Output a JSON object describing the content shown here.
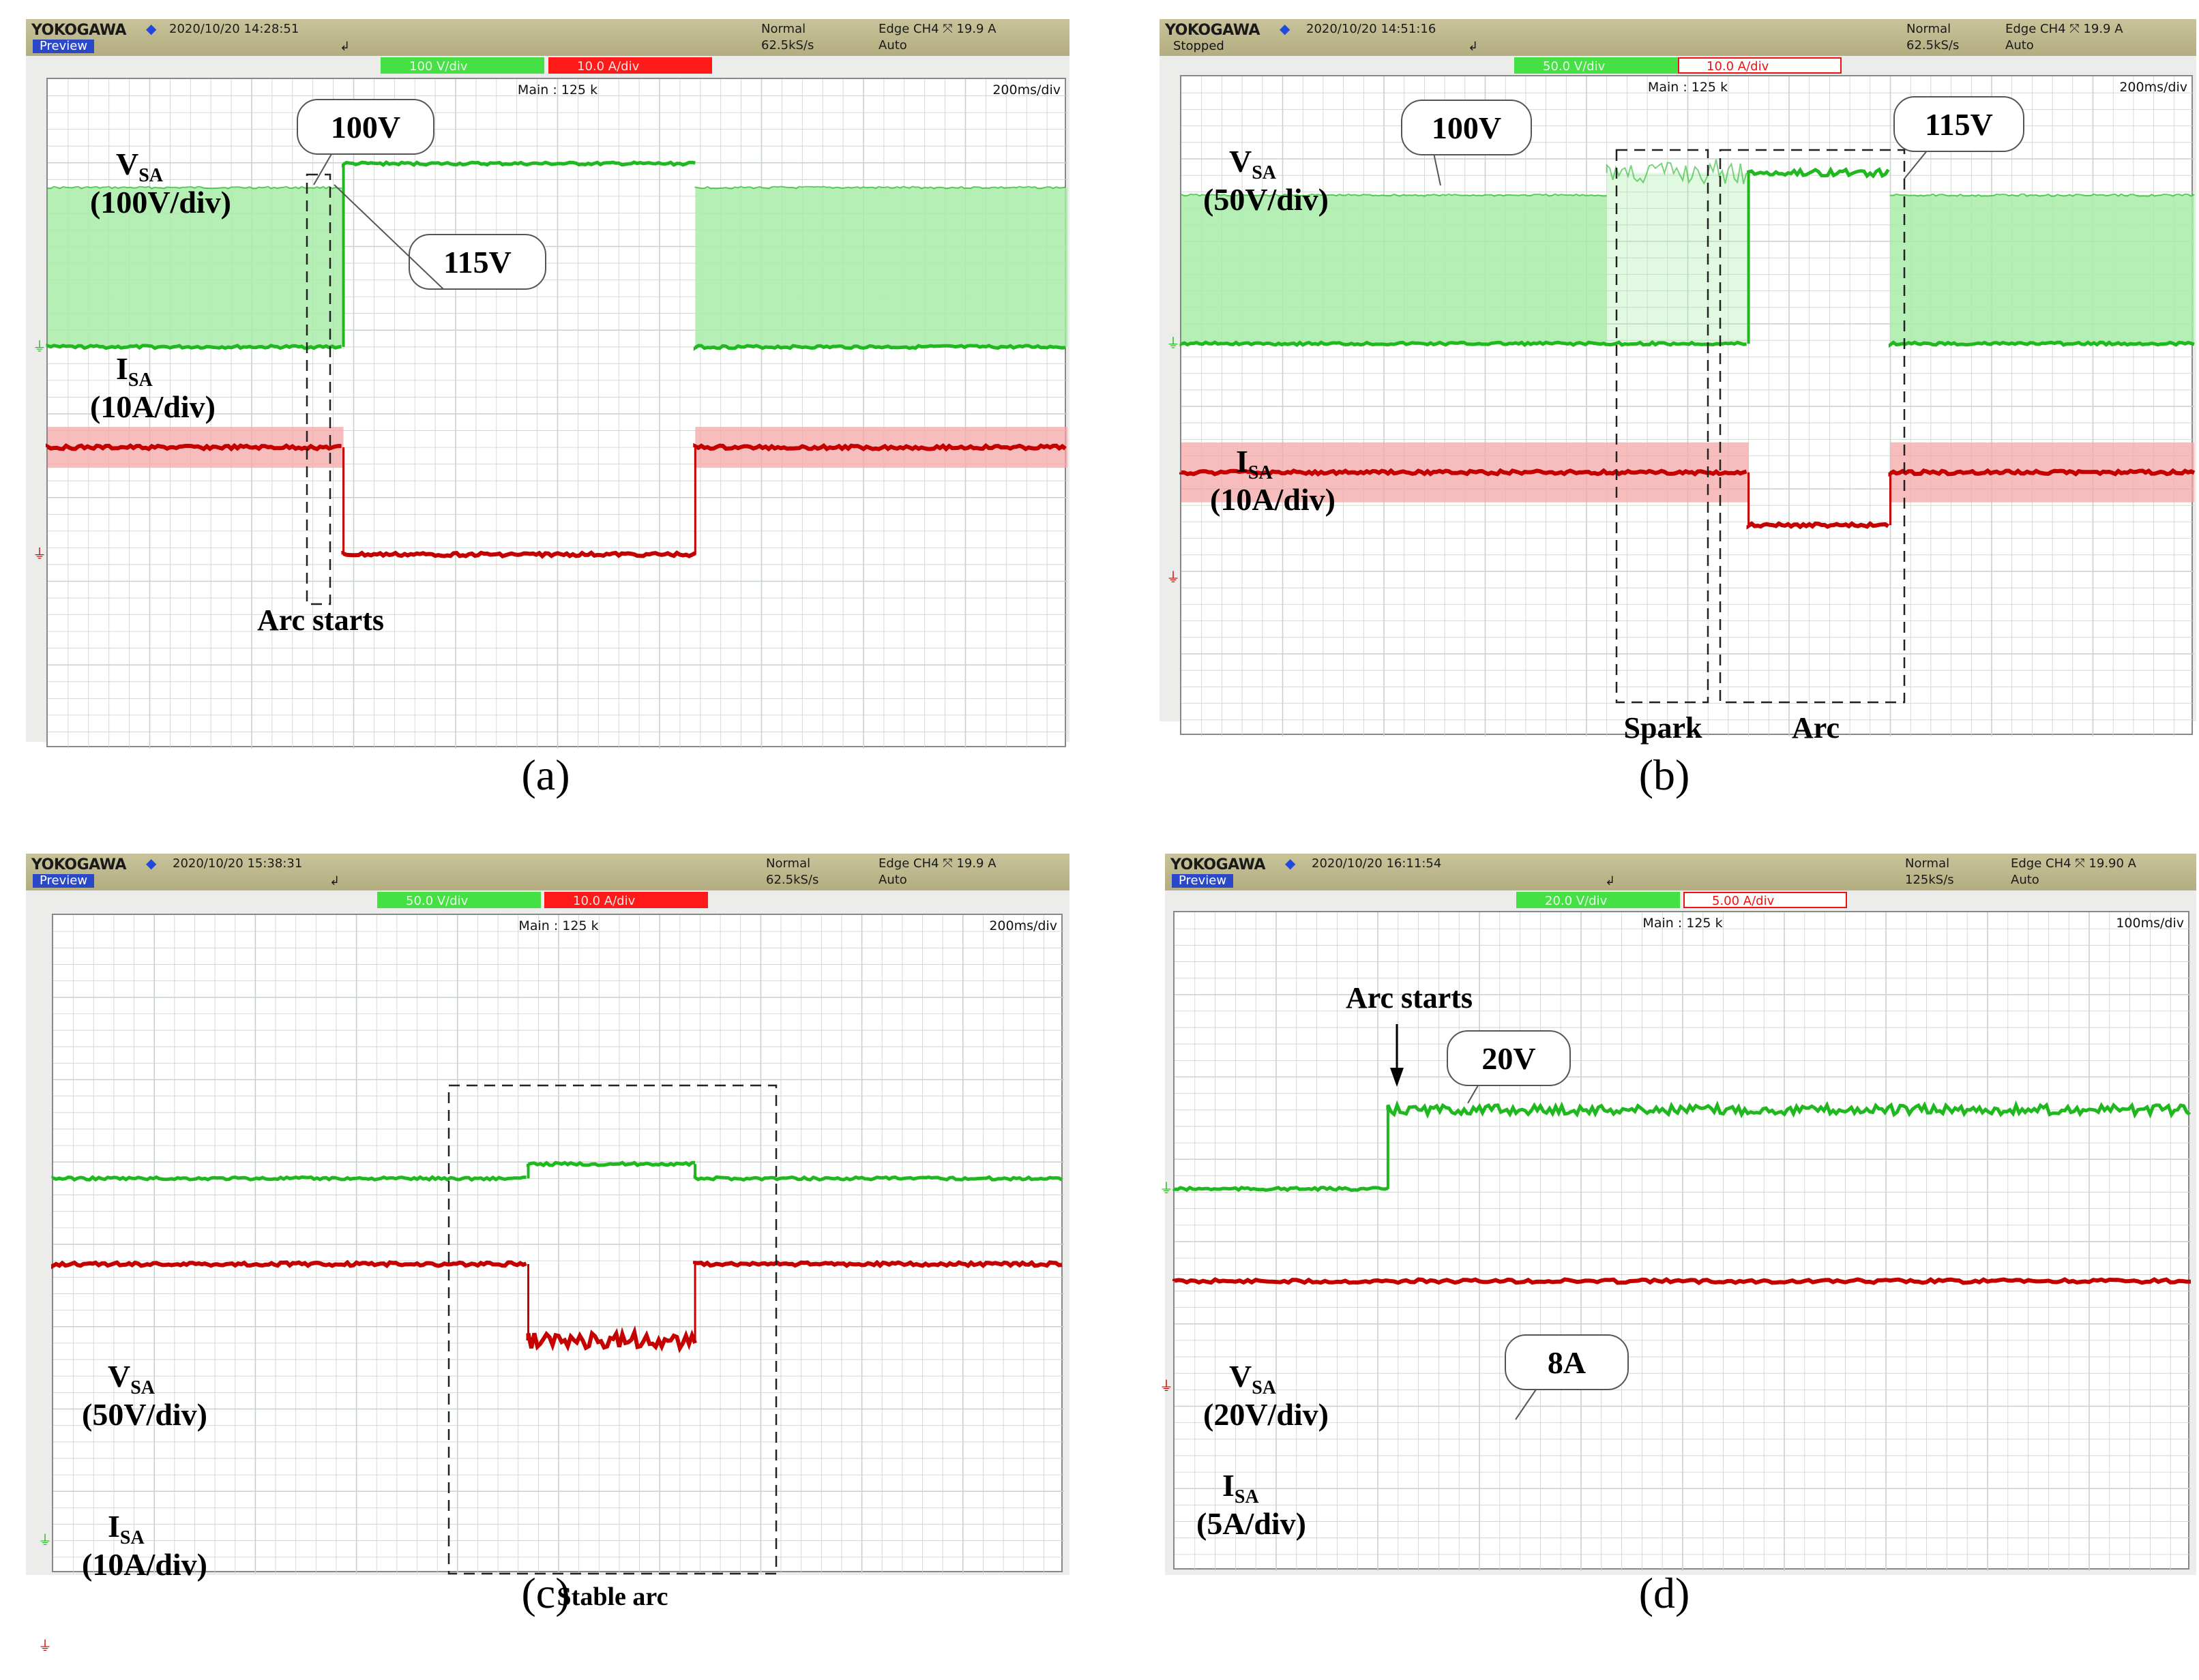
{
  "panels": [
    {
      "caption": "(a)",
      "brand": "YOKOGAWA",
      "datetime": "2020/10/20  14:28:51",
      "mode": "Preview",
      "acq_mode": "Normal",
      "sample_rate": "62.5kS/s",
      "trigger": "Edge CH4 ⤧ 19.9 A",
      "trigger_mode": "Auto",
      "ch_voltage": "100 V/div",
      "ch_current": "10.0 A/div",
      "main": "Main : 125 k",
      "timebase": "200ms/div",
      "labels": {
        "vsa": "V",
        "vsa_sub": "SA",
        "vsa_scale": "(100V/div)",
        "isa": "I",
        "isa_sub": "SA",
        "isa_scale": "(10A/div)"
      },
      "callouts": [
        "100V",
        "115V"
      ],
      "box_labels": [
        "Arc starts"
      ]
    },
    {
      "caption": "(b)",
      "brand": "YOKOGAWA",
      "datetime": "2020/10/20  14:51:16",
      "mode": "Stopped",
      "acq_mode": "Normal",
      "sample_rate": "62.5kS/s",
      "trigger": "Edge CH4 ⤧ 19.9 A",
      "trigger_mode": "Auto",
      "ch_voltage": "50.0 V/div",
      "ch_current": "10.0 A/div",
      "main": "Main : 125 k",
      "timebase": "200ms/div",
      "labels": {
        "vsa": "V",
        "vsa_sub": "SA",
        "vsa_scale": "(50V/div)",
        "isa": "I",
        "isa_sub": "SA",
        "isa_scale": "(10A/div)"
      },
      "callouts": [
        "100V",
        "115V"
      ],
      "box_labels": [
        "Spark",
        "Arc"
      ]
    },
    {
      "caption": "(c)",
      "brand": "YOKOGAWA",
      "datetime": "2020/10/20  15:38:31",
      "mode": "Preview",
      "acq_mode": "Normal",
      "sample_rate": "62.5kS/s",
      "trigger": "Edge CH4 ⤧ 19.9 A",
      "trigger_mode": "Auto",
      "ch_voltage": "50.0 V/div",
      "ch_current": "10.0 A/div",
      "main": "Main : 125 k",
      "timebase": "200ms/div",
      "labels": {
        "vsa": "V",
        "vsa_sub": "SA",
        "vsa_scale": "(50V/div)",
        "isa": "I",
        "isa_sub": "SA",
        "isa_scale": "(10A/div)"
      },
      "callouts": [],
      "box_labels": [
        "Stable arc"
      ]
    },
    {
      "caption": "(d)",
      "brand": "YOKOGAWA",
      "datetime": "2020/10/20  16:11:54",
      "mode": "Preview",
      "acq_mode": "Normal",
      "sample_rate": "125kS/s",
      "trigger": "Edge CH4 ⤧ 19.90 A",
      "trigger_mode": "Auto",
      "ch_voltage": "20.0 V/div",
      "ch_current": "5.00 A/div",
      "main": "Main : 125 k",
      "timebase": "100ms/div",
      "labels": {
        "vsa": "V",
        "vsa_sub": "SA",
        "vsa_scale": "(20V/div)",
        "isa": "I",
        "isa_sub": "SA",
        "isa_scale": "(5A/div)"
      },
      "callouts": [
        "20V",
        "8A"
      ],
      "box_labels": [
        "Arc starts"
      ]
    }
  ],
  "colors": {
    "voltage": "#1fb81f",
    "voltage_fill": "#a8ecA8",
    "current": "#c40000",
    "current_fill": "#f4a7a7",
    "grid": "#c9d2c9",
    "header": "#b9b388"
  },
  "chart_data": [
    {
      "type": "line",
      "panel": "(a)",
      "xlabel": "",
      "ylabel": "",
      "x_unit": "ms",
      "xlim": [
        0,
        2000
      ],
      "series": [
        {
          "name": "VSA",
          "scale": "100V/div",
          "segments": [
            {
              "x": [
                0,
                580
              ],
              "level": "pulsing",
              "low_V": 0,
              "high_V": 100
            },
            {
              "x": [
                580,
                1270
              ],
              "level": "steady",
              "V": 115
            },
            {
              "x": [
                1270,
                2000
              ],
              "level": "pulsing",
              "low_V": 0,
              "high_V": 100
            }
          ]
        },
        {
          "name": "ISA",
          "scale": "10A/div",
          "segments": [
            {
              "x": [
                0,
                580
              ],
              "A": 10
            },
            {
              "x": [
                580,
                1270
              ],
              "A": 0
            },
            {
              "x": [
                1270,
                2000
              ],
              "A": 10
            }
          ]
        }
      ],
      "annotations": [
        "100V",
        "115V",
        "Arc starts"
      ]
    },
    {
      "type": "line",
      "panel": "(b)",
      "xlabel": "",
      "ylabel": "",
      "x_unit": "ms",
      "xlim": [
        0,
        2000
      ],
      "series": [
        {
          "name": "VSA",
          "scale": "50V/div",
          "segments": [
            {
              "x": [
                0,
                840
              ],
              "level": "pulsing",
              "low_V": 0,
              "high_V": 100
            },
            {
              "x": [
                840,
                1120
              ],
              "level": "spark",
              "low_V": 0,
              "high_V": 115
            },
            {
              "x": [
                1120,
                1400
              ],
              "level": "arc",
              "V": 115
            },
            {
              "x": [
                1400,
                2000
              ],
              "level": "pulsing",
              "low_V": 0,
              "high_V": 100
            }
          ]
        },
        {
          "name": "ISA",
          "scale": "10A/div",
          "segments": [
            {
              "x": [
                0,
                1120
              ],
              "A": 10
            },
            {
              "x": [
                1120,
                1400
              ],
              "A": 5
            },
            {
              "x": [
                1400,
                2000
              ],
              "A": 10
            }
          ]
        }
      ],
      "annotations": [
        "100V",
        "115V",
        "Spark",
        "Arc"
      ]
    },
    {
      "type": "line",
      "panel": "(c)",
      "xlabel": "",
      "ylabel": "",
      "x_unit": "ms",
      "xlim": [
        0,
        2000
      ],
      "series": [
        {
          "name": "VSA",
          "scale": "50V/div",
          "segments": [
            {
              "x": [
                0,
                940
              ],
              "V": 100
            },
            {
              "x": [
                940,
                1270
              ],
              "V": 104
            },
            {
              "x": [
                1270,
                2000
              ],
              "V": 100
            }
          ]
        },
        {
          "name": "ISA",
          "scale": "10A/div",
          "segments": [
            {
              "x": [
                0,
                940
              ],
              "A": 10
            },
            {
              "x": [
                940,
                1270
              ],
              "A": 8
            },
            {
              "x": [
                1270,
                2000
              ],
              "A": 10
            }
          ]
        }
      ],
      "annotations": [
        "Stable arc"
      ]
    },
    {
      "type": "line",
      "panel": "(d)",
      "xlabel": "",
      "ylabel": "",
      "x_unit": "ms",
      "xlim": [
        0,
        1000
      ],
      "series": [
        {
          "name": "VSA",
          "scale": "20V/div",
          "segments": [
            {
              "x": [
                0,
                210
              ],
              "V": 0
            },
            {
              "x": [
                210,
                1000
              ],
              "V": 20
            }
          ]
        },
        {
          "name": "ISA",
          "scale": "5A/div",
          "segments": [
            {
              "x": [
                0,
                1000
              ],
              "A": 8
            }
          ]
        }
      ],
      "annotations": [
        "Arc starts",
        "20V",
        "8A"
      ]
    }
  ]
}
